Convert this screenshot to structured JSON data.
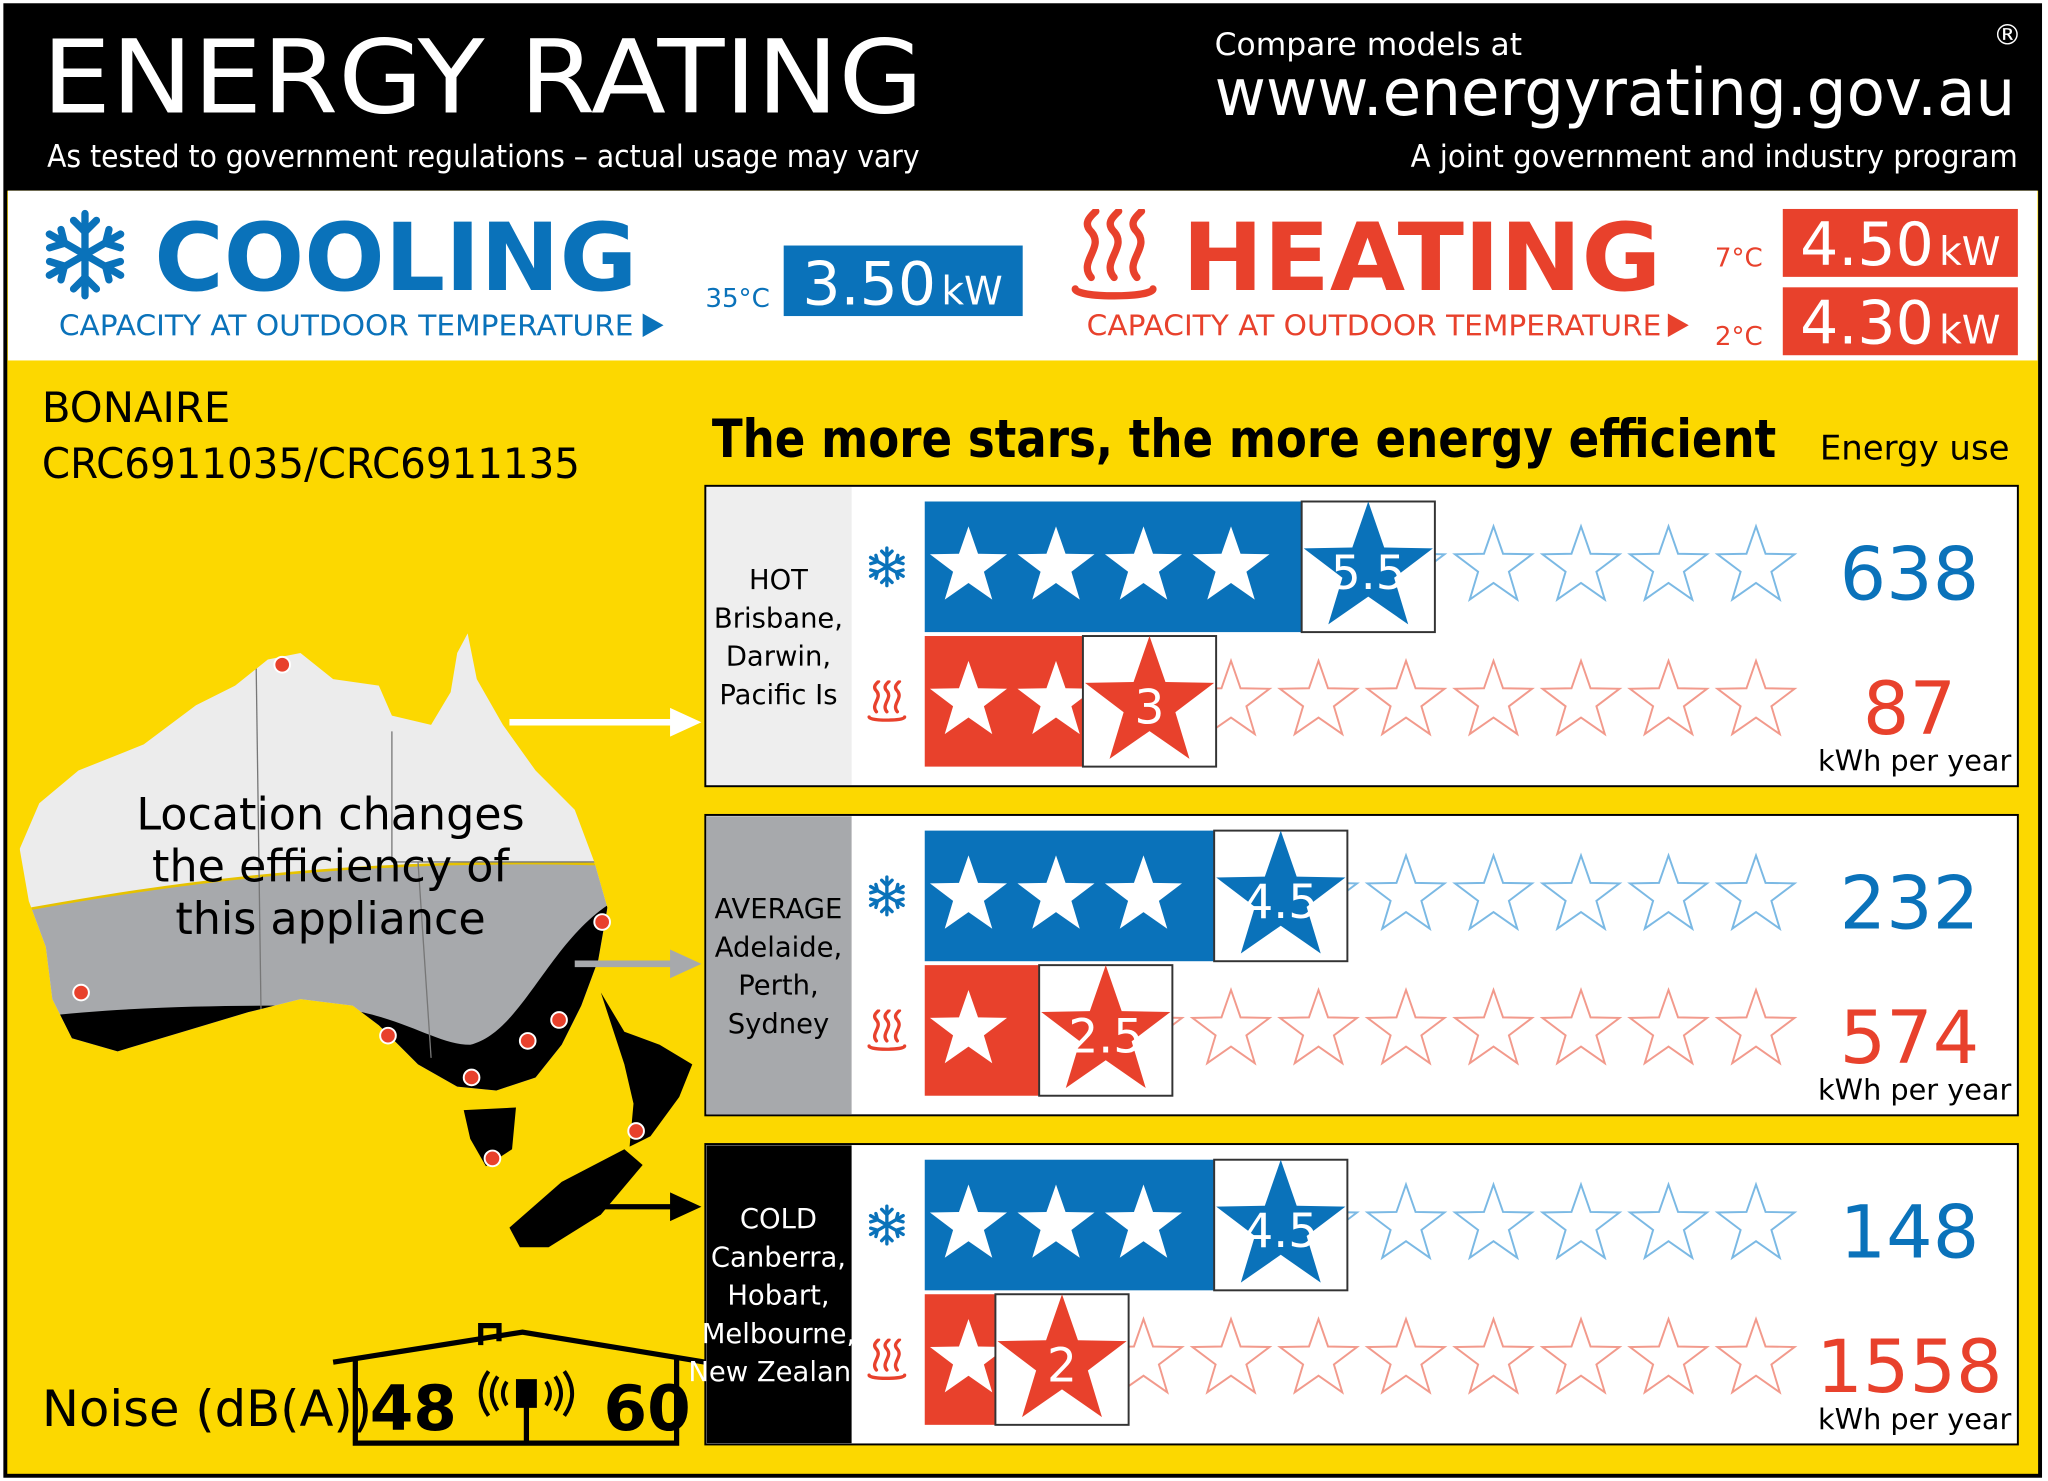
{
  "header": {
    "title": "ENERGY RATING",
    "disclaimer": "As tested to government regulations – actual usage may vary",
    "compare": "Compare models at",
    "website": "www.energyrating.gov.au",
    "registered": "®",
    "program": "A joint government and industry program"
  },
  "cooling": {
    "title": "COOLING",
    "caption": "CAPACITY AT OUTDOOR TEMPERATURE",
    "ratings": [
      {
        "temperature": "35°C",
        "capacity": "3.50",
        "unit": "kW"
      }
    ]
  },
  "heating": {
    "title": "HEATING",
    "caption": "CAPACITY AT OUTDOOR TEMPERATURE",
    "ratings": [
      {
        "temperature": "7°C",
        "capacity": "4.50",
        "unit": "kW"
      },
      {
        "temperature": "2°C",
        "capacity": "4.30",
        "unit": "kW"
      }
    ]
  },
  "product": {
    "brand": "BONAIRE",
    "model": "CRC6911035/CRC6911135"
  },
  "map": {
    "caption": [
      "Location changes",
      "the efficiency of",
      "this appliance"
    ]
  },
  "rating": {
    "tagline": "The more stars, the more energy efficient",
    "energy_use_label": "Energy use",
    "stars": 10,
    "zones": [
      {
        "climate": "HOT",
        "places": [
          "Brisbane,",
          "Darwin,",
          "Pacific Is"
        ],
        "cooling_stars": 5.5,
        "heating_stars": 3,
        "cooling_kwh": 638,
        "heating_kwh": 87,
        "kwh_unit": "kWh per year"
      },
      {
        "climate": "AVERAGE",
        "places": [
          "Adelaide,",
          "Perth,",
          "Sydney"
        ],
        "cooling_stars": 4.5,
        "heating_stars": 2.5,
        "cooling_kwh": 232,
        "heating_kwh": 574,
        "kwh_unit": "kWh per year"
      },
      {
        "climate": "COLD",
        "places": [
          "Canberra,",
          "Hobart,",
          "Melbourne,",
          "New Zealand"
        ],
        "cooling_stars": 4.5,
        "heating_stars": 2,
        "cooling_kwh": 148,
        "heating_kwh": 1558,
        "kwh_unit": "kWh per year"
      }
    ]
  },
  "noise": {
    "label": "Noise (dB(A))",
    "indoor": 48,
    "outdoor": 60
  }
}
